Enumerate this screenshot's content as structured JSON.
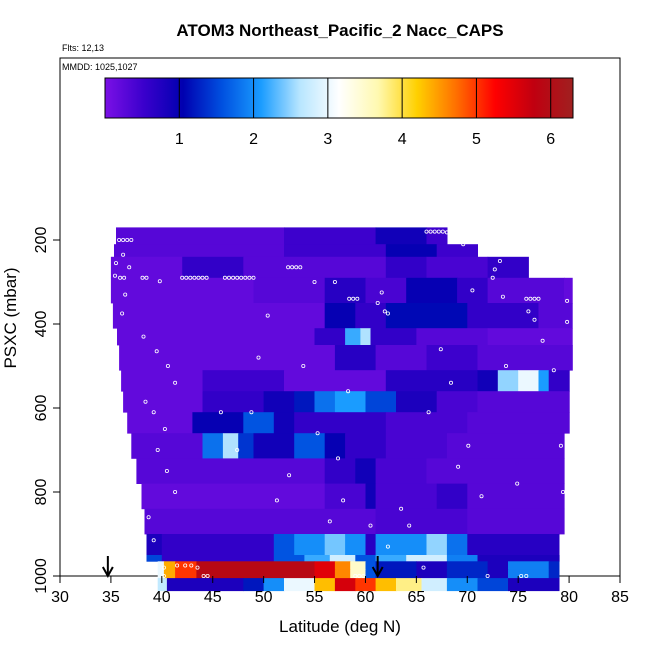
{
  "chart_data": {
    "type": "heatmap",
    "title": "ATOM3 Northeast_Pacific_2 Nacc_CAPS",
    "notes": [
      "Flts: 12,13",
      "MMDD: 1025,1027"
    ],
    "xlabel": "Latitude (deg N)",
    "ylabel": "PSXC (mbar)",
    "xlim": [
      30,
      85
    ],
    "ylim": [
      1000,
      0
    ],
    "x_ticks": [
      30,
      35,
      40,
      45,
      50,
      55,
      60,
      65,
      70,
      75,
      80,
      85
    ],
    "y_ticks": [
      200,
      400,
      600,
      800,
      1000
    ],
    "colorbar": {
      "range": [
        0,
        6.3
      ],
      "ticks": [
        1,
        2,
        3,
        4,
        5,
        6
      ],
      "colors": [
        "#7b10e6",
        "#3a00cc",
        "#0000b0",
        "#0050e0",
        "#1a9cff",
        "#b8e6ff",
        "#ffffff",
        "#fff9b0",
        "#ffd000",
        "#ff7000",
        "#ff0000",
        "#c00010",
        "#a02020"
      ]
    },
    "profile_markers": [
      34.7,
      61.2
    ],
    "rows": [
      {
        "p": [
          170,
          210
        ],
        "segments": [
          [
            35.5,
            52,
            0.3
          ],
          [
            52,
            61,
            0.5
          ],
          [
            61,
            66,
            0.9
          ],
          [
            66,
            68,
            0.5
          ]
        ]
      },
      {
        "p": [
          210,
          240
        ],
        "segments": [
          [
            35.3,
            52,
            0.3
          ],
          [
            52,
            62,
            0.5
          ],
          [
            62,
            67,
            1.0
          ],
          [
            67,
            71,
            0.5
          ]
        ]
      },
      {
        "p": [
          240,
          290
        ],
        "segments": [
          [
            35.0,
            42,
            0.2
          ],
          [
            42,
            48,
            0.6
          ],
          [
            48,
            62,
            0.3
          ],
          [
            62,
            66,
            0.6
          ],
          [
            66,
            72,
            0.4
          ],
          [
            72,
            76,
            0.6
          ]
        ]
      },
      {
        "p": [
          290,
          350
        ],
        "segments": [
          [
            35.0,
            49,
            0.2
          ],
          [
            49,
            56,
            0.3
          ],
          [
            56,
            60,
            0.7
          ],
          [
            60,
            64,
            0.4
          ],
          [
            64,
            69,
            1.0
          ],
          [
            69,
            72,
            0.6
          ],
          [
            72,
            79.5,
            0.3
          ],
          [
            79.5,
            80.3,
            0.2
          ]
        ]
      },
      {
        "p": [
          350,
          410
        ],
        "segments": [
          [
            35.2,
            56,
            0.2
          ],
          [
            56,
            59,
            1.0
          ],
          [
            59,
            62,
            0.6
          ],
          [
            62,
            70,
            1.1
          ],
          [
            70,
            77,
            0.6
          ],
          [
            77,
            80.3,
            0.3
          ]
        ]
      },
      {
        "p": [
          410,
          450
        ],
        "segments": [
          [
            35.6,
            55,
            0.2
          ],
          [
            55,
            58,
            0.6
          ],
          [
            58,
            59.5,
            2.2
          ],
          [
            59.5,
            60.5,
            2.6
          ],
          [
            60.5,
            65,
            0.6
          ],
          [
            65,
            72,
            0.3
          ],
          [
            72,
            80.3,
            0.2
          ]
        ]
      },
      {
        "p": [
          450,
          510
        ],
        "segments": [
          [
            35.8,
            57,
            0.2
          ],
          [
            57,
            61,
            0.7
          ],
          [
            61,
            66,
            0.3
          ],
          [
            66,
            71,
            0.5
          ],
          [
            71,
            80.3,
            0.3
          ]
        ]
      },
      {
        "p": [
          510,
          560
        ],
        "segments": [
          [
            36.0,
            44,
            0.2
          ],
          [
            44,
            52,
            0.5
          ],
          [
            52,
            62,
            0.2
          ],
          [
            62,
            71,
            0.7
          ],
          [
            71,
            73,
            0.9
          ],
          [
            73,
            75,
            2.5
          ],
          [
            75,
            77,
            3.0
          ],
          [
            77,
            78,
            2.1
          ],
          [
            78,
            80,
            0.6
          ]
        ]
      },
      {
        "p": [
          560,
          610
        ],
        "segments": [
          [
            36.2,
            44,
            0.2
          ],
          [
            44,
            50,
            0.6
          ],
          [
            50,
            53,
            0.9
          ],
          [
            53,
            55,
            1.2
          ],
          [
            55,
            57,
            1.8
          ],
          [
            57,
            60,
            2.1
          ],
          [
            60,
            63,
            1.5
          ],
          [
            63,
            67,
            0.8
          ],
          [
            67,
            71,
            0.4
          ],
          [
            71,
            80,
            0.3
          ]
        ]
      },
      {
        "p": [
          610,
          660
        ],
        "segments": [
          [
            36.6,
            43,
            0.2
          ],
          [
            43,
            48,
            1.0
          ],
          [
            48,
            51,
            1.6
          ],
          [
            51,
            53,
            0.9
          ],
          [
            53,
            62,
            0.6
          ],
          [
            62,
            70,
            0.4
          ],
          [
            70,
            80,
            0.3
          ]
        ]
      },
      {
        "p": [
          660,
          720
        ],
        "segments": [
          [
            37.0,
            44,
            0.3
          ],
          [
            44,
            46,
            1.8
          ],
          [
            46,
            47.5,
            2.6
          ],
          [
            47.5,
            49,
            1.4
          ],
          [
            49,
            53,
            0.9
          ],
          [
            53,
            56,
            1.6
          ],
          [
            56,
            58,
            1.0
          ],
          [
            58,
            62,
            0.6
          ],
          [
            62,
            68,
            0.4
          ],
          [
            68,
            79.5,
            0.3
          ]
        ]
      },
      {
        "p": [
          720,
          780
        ],
        "segments": [
          [
            37.5,
            56,
            0.3
          ],
          [
            56,
            59,
            0.6
          ],
          [
            59,
            61,
            0.9
          ],
          [
            61,
            66,
            0.4
          ],
          [
            66,
            71,
            0.3
          ],
          [
            71,
            79.5,
            0.3
          ]
        ]
      },
      {
        "p": [
          780,
          840
        ],
        "segments": [
          [
            38.0,
            56,
            0.2
          ],
          [
            56,
            60,
            0.4
          ],
          [
            60,
            61,
            0.9
          ],
          [
            61,
            67,
            0.4
          ],
          [
            67,
            70,
            0.6
          ],
          [
            70,
            79.5,
            0.3
          ]
        ]
      },
      {
        "p": [
          840,
          900
        ],
        "segments": [
          [
            38.3,
            61,
            0.3
          ],
          [
            61,
            70,
            0.4
          ],
          [
            70,
            79.5,
            0.3
          ]
        ]
      },
      {
        "p": [
          900,
          950
        ],
        "segments": [
          [
            38.5,
            40,
            0.8
          ],
          [
            40,
            51,
            0.6
          ],
          [
            51,
            53,
            1.6
          ],
          [
            53,
            56,
            2.0
          ],
          [
            56,
            58,
            2.4
          ],
          [
            58,
            60,
            2.0
          ],
          [
            60,
            61,
            0.7
          ],
          [
            61,
            66,
            2.0
          ],
          [
            66,
            68,
            2.5
          ],
          [
            68,
            70,
            1.8
          ],
          [
            70,
            79,
            0.7
          ]
        ]
      },
      {
        "p": [
          950,
          965
        ],
        "segments": [
          [
            38.5,
            40,
            1.5
          ],
          [
            40,
            51,
            0.6
          ],
          [
            51,
            54,
            1.6
          ],
          [
            54,
            56.5,
            2.2
          ],
          [
            56.5,
            59,
            2.8
          ],
          [
            59,
            61,
            1.6
          ],
          [
            61,
            64,
            2.2
          ],
          [
            64,
            68,
            2.8
          ],
          [
            68,
            71,
            1.9
          ],
          [
            71,
            79,
            0.8
          ]
        ]
      },
      {
        "p": [
          965,
          985
        ],
        "segments": [
          [
            39.6,
            40.2,
            3.0
          ],
          [
            40.2,
            41.3,
            4.4
          ],
          [
            41.3,
            43.4,
            5.0
          ],
          [
            43.4,
            55,
            5.9
          ],
          [
            55,
            57,
            5.5
          ],
          [
            57,
            58.5,
            4.6
          ],
          [
            58.5,
            60,
            3.5
          ],
          [
            60,
            61,
            1.6
          ],
          [
            61,
            65,
            1.2
          ],
          [
            65,
            68,
            0.8
          ],
          [
            68,
            72,
            1.3
          ],
          [
            72,
            74,
            0.8
          ],
          [
            74,
            78,
            1.9
          ],
          [
            78,
            79,
            1.3
          ]
        ]
      },
      {
        "p": [
          985,
          1005
        ],
        "segments": [
          [
            39.6,
            40.2,
            3.0
          ],
          [
            40.2,
            41.3,
            4.4
          ],
          [
            41.3,
            43.4,
            5.0
          ],
          [
            43.4,
            55,
            5.9
          ],
          [
            55,
            57,
            5.5
          ],
          [
            57,
            58.5,
            4.6
          ],
          [
            58.5,
            60,
            3.5
          ],
          [
            60,
            61,
            1.6
          ],
          [
            61,
            65,
            1.2
          ],
          [
            65,
            68,
            0.8
          ],
          [
            68,
            72,
            1.3
          ],
          [
            72,
            74,
            0.8
          ],
          [
            74,
            78,
            1.9
          ],
          [
            78,
            79,
            1.3
          ]
        ]
      },
      {
        "p": [
          1005,
          1035
        ],
        "segments": [
          [
            39.6,
            40.5,
            2.7
          ],
          [
            40.5,
            48,
            0.8
          ],
          [
            48,
            50,
            1.2
          ],
          [
            50,
            52,
            2.0
          ],
          [
            52,
            55,
            3.0
          ],
          [
            55,
            57,
            4.3
          ],
          [
            57,
            59,
            5.6
          ],
          [
            59,
            61,
            5.0
          ],
          [
            61,
            63,
            4.3
          ],
          [
            63,
            65.5,
            3.8
          ],
          [
            65.5,
            68,
            2.8
          ],
          [
            68,
            71,
            2.0
          ],
          [
            71,
            74,
            1.5
          ],
          [
            74,
            79,
            0.8
          ]
        ]
      }
    ],
    "track_points": [
      [
        35.8,
        200
      ],
      [
        36.2,
        200
      ],
      [
        36.6,
        200
      ],
      [
        37.0,
        200
      ],
      [
        36.2,
        235
      ],
      [
        35.5,
        255
      ],
      [
        36.8,
        265
      ],
      [
        35.4,
        285
      ],
      [
        35.9,
        290
      ],
      [
        36.3,
        290
      ],
      [
        38.1,
        290
      ],
      [
        38.5,
        290
      ],
      [
        39.8,
        298
      ],
      [
        42.0,
        290
      ],
      [
        42.4,
        290
      ],
      [
        42.8,
        290
      ],
      [
        43.2,
        290
      ],
      [
        43.6,
        290
      ],
      [
        44.0,
        290
      ],
      [
        44.4,
        290
      ],
      [
        46.2,
        290
      ],
      [
        46.6,
        290
      ],
      [
        47.0,
        290
      ],
      [
        47.4,
        290
      ],
      [
        47.8,
        290
      ],
      [
        48.2,
        290
      ],
      [
        48.6,
        290
      ],
      [
        49.0,
        290
      ],
      [
        52.4,
        265
      ],
      [
        52.8,
        265
      ],
      [
        53.2,
        265
      ],
      [
        53.6,
        265
      ],
      [
        55.0,
        300
      ],
      [
        57.0,
        300
      ],
      [
        58.4,
        340
      ],
      [
        58.8,
        340
      ],
      [
        59.2,
        340
      ],
      [
        61.6,
        325
      ],
      [
        61.2,
        350
      ],
      [
        61.9,
        370
      ],
      [
        62.2,
        375
      ],
      [
        66.0,
        180
      ],
      [
        66.4,
        180
      ],
      [
        66.8,
        180
      ],
      [
        67.2,
        180
      ],
      [
        67.6,
        180
      ],
      [
        68.0,
        182
      ],
      [
        68.4,
        185
      ],
      [
        68.8,
        188
      ],
      [
        69.2,
        200
      ],
      [
        69.6,
        210
      ],
      [
        71.6,
        225
      ],
      [
        72.0,
        225
      ],
      [
        72.4,
        225
      ],
      [
        72.8,
        225
      ],
      [
        73.2,
        250
      ],
      [
        72.7,
        270
      ],
      [
        72.5,
        290
      ],
      [
        73.5,
        335
      ],
      [
        75.8,
        340
      ],
      [
        76.2,
        340
      ],
      [
        76.6,
        340
      ],
      [
        77.0,
        340
      ],
      [
        76.0,
        370
      ],
      [
        79.8,
        345
      ],
      [
        79.8,
        395
      ],
      [
        36.4,
        330
      ],
      [
        36.1,
        375
      ],
      [
        38.2,
        430
      ],
      [
        39.5,
        465
      ],
      [
        40.6,
        500
      ],
      [
        41.3,
        540
      ],
      [
        38.4,
        585
      ],
      [
        39.2,
        610
      ],
      [
        40.3,
        650
      ],
      [
        39.6,
        700
      ],
      [
        40.5,
        750
      ],
      [
        41.3,
        800
      ],
      [
        37.3,
        830
      ],
      [
        38.7,
        860
      ],
      [
        39.2,
        915
      ],
      [
        41.5,
        975
      ],
      [
        42.3,
        975
      ],
      [
        42.9,
        975
      ],
      [
        43.5,
        980
      ],
      [
        44.1,
        1000
      ],
      [
        44.5,
        1000
      ],
      [
        45.8,
        610
      ],
      [
        47.4,
        700
      ],
      [
        48.8,
        610
      ],
      [
        49.5,
        480
      ],
      [
        50.4,
        380
      ],
      [
        51.3,
        820
      ],
      [
        52.5,
        760
      ],
      [
        53.9,
        500
      ],
      [
        55.3,
        660
      ],
      [
        57.3,
        720
      ],
      [
        57.8,
        820
      ],
      [
        58.3,
        560
      ],
      [
        59.0,
        1000
      ],
      [
        59.4,
        1000
      ],
      [
        59.8,
        1000
      ],
      [
        56.5,
        870
      ],
      [
        60.5,
        880
      ],
      [
        62.2,
        930
      ],
      [
        63.5,
        840
      ],
      [
        64.3,
        880
      ],
      [
        65.7,
        980
      ],
      [
        66.2,
        610
      ],
      [
        67.4,
        460
      ],
      [
        68.4,
        540
      ],
      [
        69.1,
        740
      ],
      [
        70.1,
        690
      ],
      [
        70.5,
        320
      ],
      [
        71.4,
        810
      ],
      [
        72.0,
        1000
      ],
      [
        73.8,
        500
      ],
      [
        74.9,
        780
      ],
      [
        75.3,
        1000
      ],
      [
        75.8,
        1000
      ],
      [
        76.6,
        390
      ],
      [
        77.4,
        440
      ],
      [
        78.5,
        510
      ],
      [
        79.2,
        690
      ],
      [
        79.4,
        800
      ],
      [
        40.2,
        980
      ],
      [
        40.2,
        1000
      ]
    ]
  }
}
